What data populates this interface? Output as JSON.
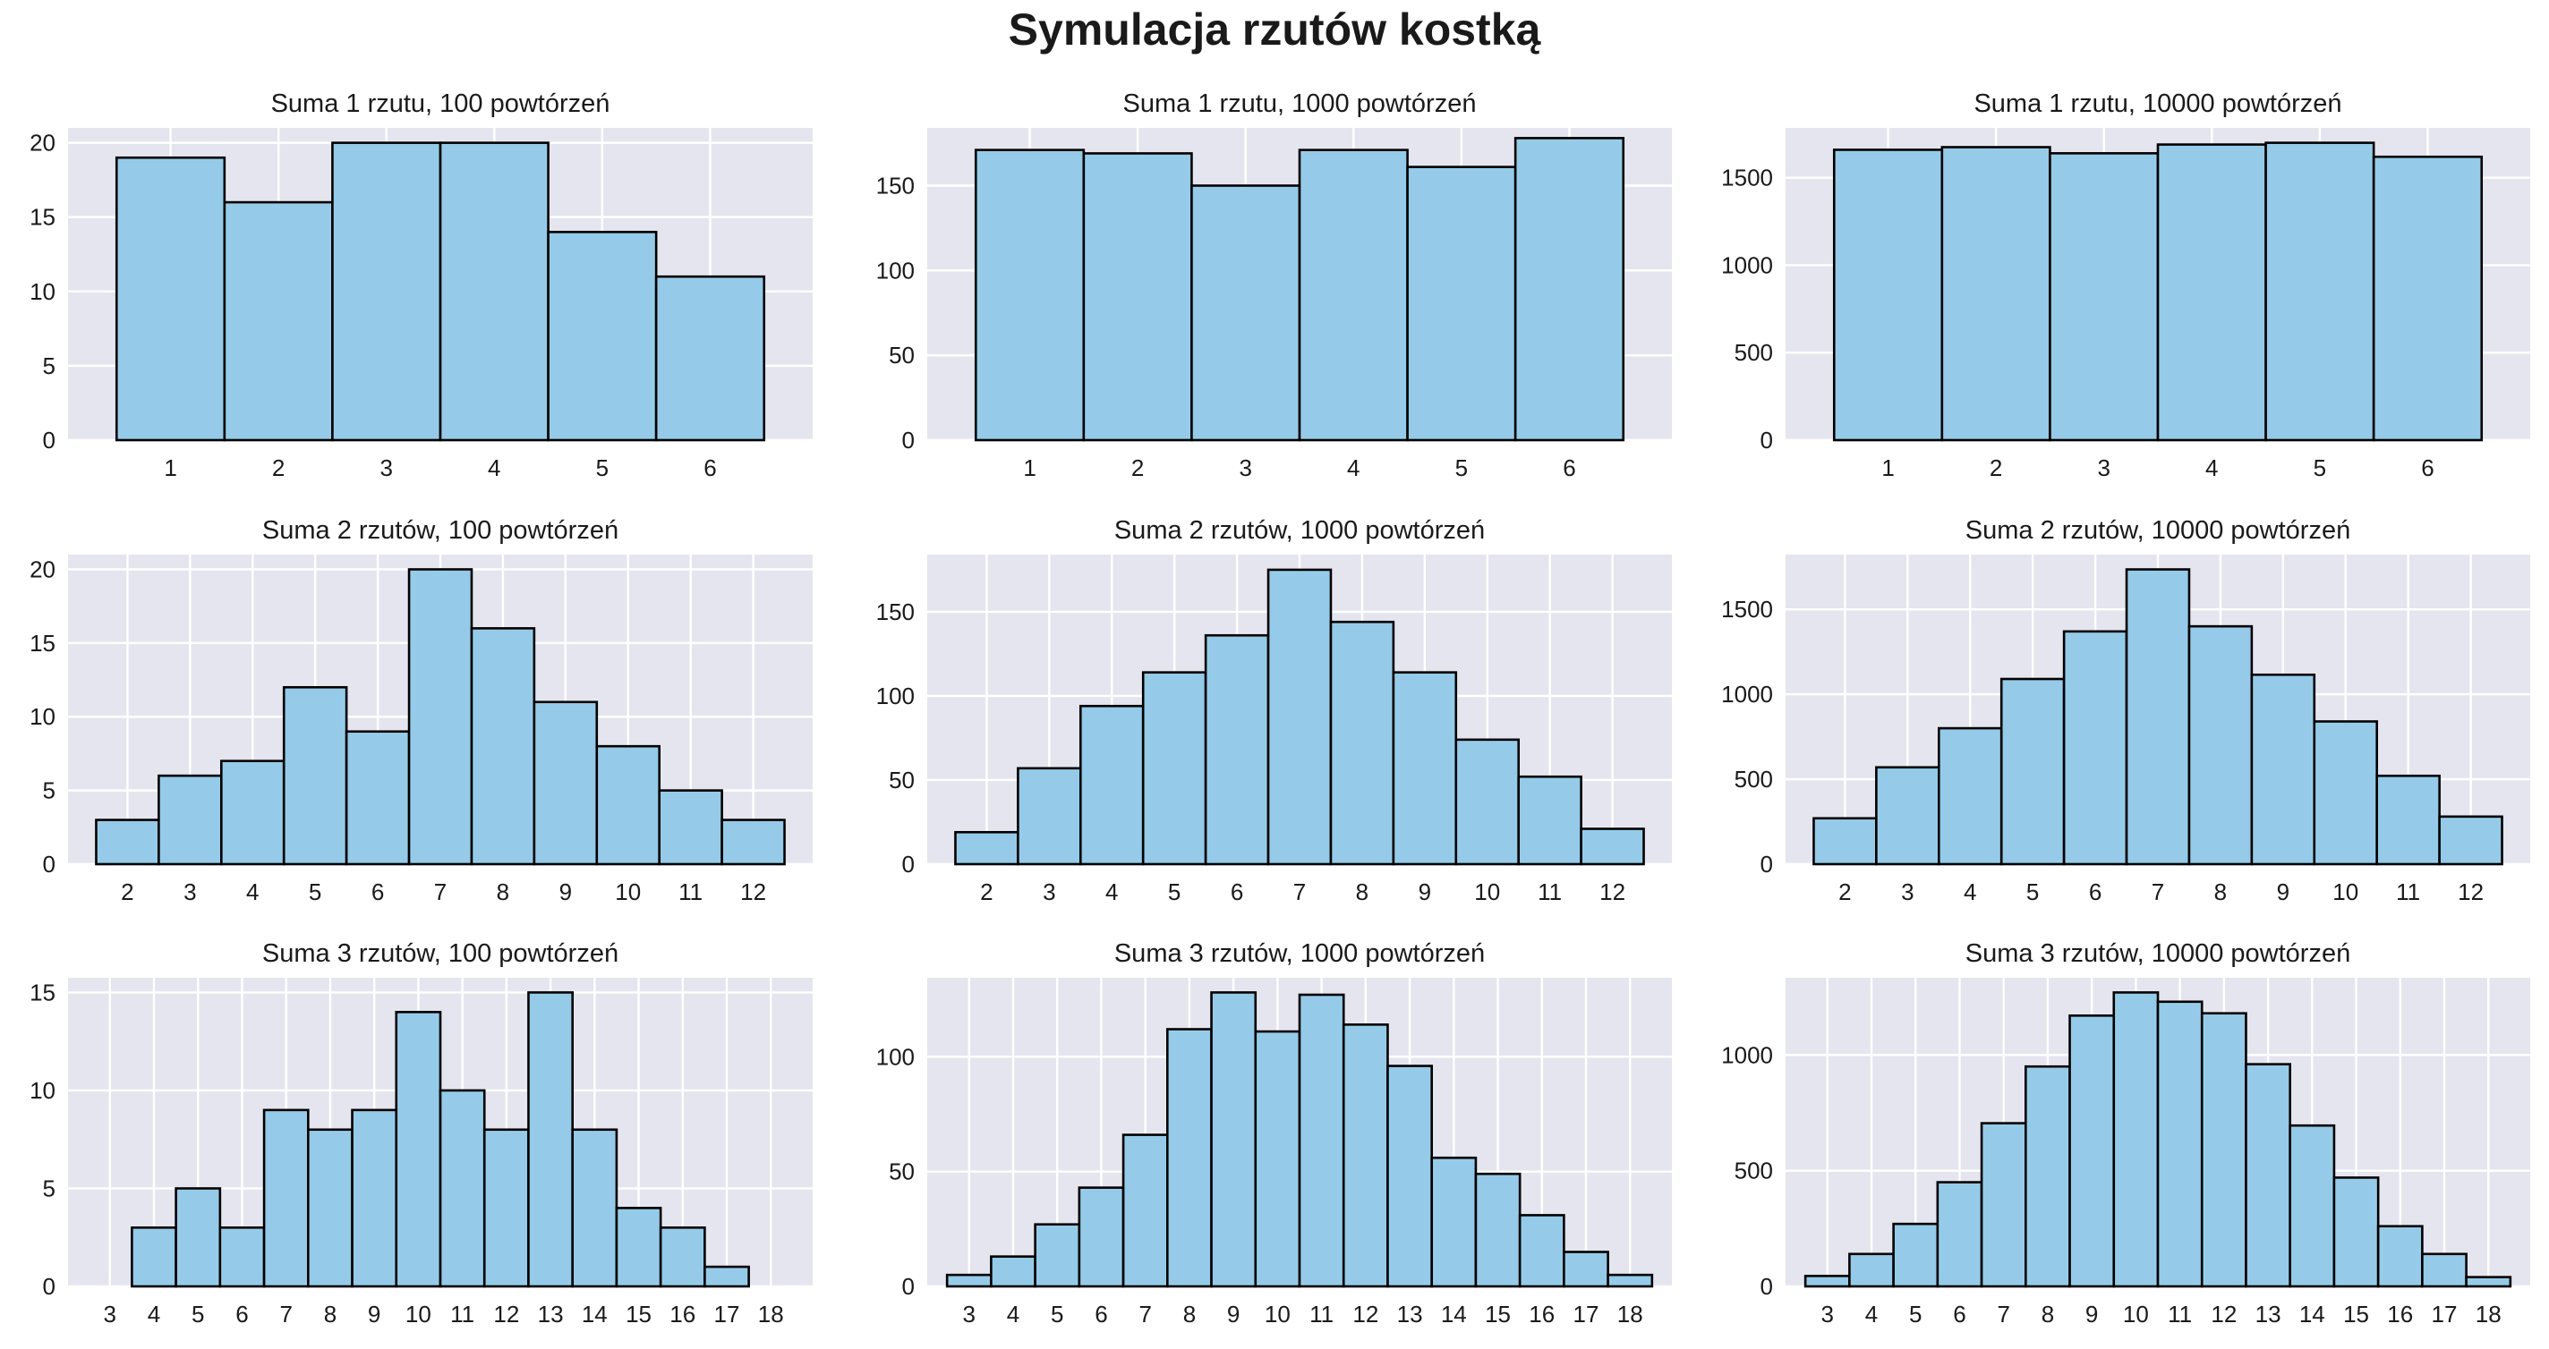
{
  "title": "Symulacja rzutów kostką",
  "chart_data": [
    {
      "type": "bar",
      "title": "Suma 1 rzutu, 100 powtórzeń",
      "categories": [
        "1",
        "2",
        "3",
        "4",
        "5",
        "6"
      ],
      "values": [
        19,
        16,
        20,
        20,
        14,
        11
      ],
      "yticks": [
        0,
        5,
        10,
        15,
        20
      ],
      "ylim": [
        0,
        21
      ],
      "grid": true
    },
    {
      "type": "bar",
      "title": "Suma 1 rzutu, 1000 powtórzeń",
      "categories": [
        "1",
        "2",
        "3",
        "4",
        "5",
        "6"
      ],
      "values": [
        171,
        169,
        150,
        171,
        161,
        178
      ],
      "yticks": [
        0,
        50,
        100,
        150
      ],
      "ylim": [
        0,
        184
      ],
      "grid": true
    },
    {
      "type": "bar",
      "title": "Suma 1 rzutu, 10000 powtórzeń",
      "categories": [
        "1",
        "2",
        "3",
        "4",
        "5",
        "6"
      ],
      "values": [
        1660,
        1675,
        1640,
        1690,
        1700,
        1620
      ],
      "yticks": [
        0,
        500,
        1000,
        1500
      ],
      "ylim": [
        0,
        1785
      ],
      "grid": true
    },
    {
      "type": "bar",
      "title": "Suma 2 rzutów, 100 powtórzeń",
      "categories": [
        "2",
        "3",
        "4",
        "5",
        "6",
        "7",
        "8",
        "9",
        "10",
        "11",
        "12"
      ],
      "values": [
        3,
        6,
        7,
        12,
        9,
        20,
        16,
        11,
        8,
        5,
        3
      ],
      "yticks": [
        0,
        5,
        10,
        15,
        20
      ],
      "ylim": [
        0,
        21
      ],
      "grid": true
    },
    {
      "type": "bar",
      "title": "Suma 2 rzutów, 1000 powtórzeń",
      "categories": [
        "2",
        "3",
        "4",
        "5",
        "6",
        "7",
        "8",
        "9",
        "10",
        "11",
        "12"
      ],
      "values": [
        19,
        57,
        94,
        114,
        136,
        175,
        144,
        114,
        74,
        52,
        21
      ],
      "yticks": [
        0,
        50,
        100,
        150
      ],
      "ylim": [
        0,
        184
      ],
      "grid": true
    },
    {
      "type": "bar",
      "title": "Suma 2 rzutów, 10000 powtórzeń",
      "categories": [
        "2",
        "3",
        "4",
        "5",
        "6",
        "7",
        "8",
        "9",
        "10",
        "11",
        "12"
      ],
      "values": [
        270,
        570,
        800,
        1090,
        1370,
        1735,
        1400,
        1115,
        840,
        520,
        280
      ],
      "yticks": [
        0,
        500,
        1000,
        1500
      ],
      "ylim": [
        0,
        1822
      ],
      "grid": true
    },
    {
      "type": "bar",
      "title": "Suma 3 rzutów, 100 powtórzeń",
      "categories": [
        "3",
        "4",
        "5",
        "6",
        "7",
        "8",
        "9",
        "10",
        "11",
        "12",
        "13",
        "14",
        "15",
        "16",
        "17",
        "18"
      ],
      "values": [
        0,
        3,
        5,
        3,
        9,
        8,
        9,
        14,
        10,
        8,
        15,
        8,
        4,
        3,
        1,
        0
      ],
      "yticks": [
        0,
        5,
        10,
        15
      ],
      "ylim": [
        0,
        15.75
      ],
      "grid": true
    },
    {
      "type": "bar",
      "title": "Suma 3 rzutów, 1000 powtórzeń",
      "categories": [
        "3",
        "4",
        "5",
        "6",
        "7",
        "8",
        "9",
        "10",
        "11",
        "12",
        "13",
        "14",
        "15",
        "16",
        "17",
        "18"
      ],
      "values": [
        5,
        13,
        27,
        43,
        66,
        112,
        128,
        111,
        127,
        114,
        96,
        56,
        49,
        31,
        15,
        5
      ],
      "yticks": [
        0,
        50,
        100
      ],
      "ylim": [
        0,
        134.4
      ],
      "grid": true
    },
    {
      "type": "bar",
      "title": "Suma 3 rzutów, 10000 powtórzeń",
      "categories": [
        "3",
        "4",
        "5",
        "6",
        "7",
        "8",
        "9",
        "10",
        "11",
        "12",
        "13",
        "14",
        "15",
        "16",
        "17",
        "18"
      ],
      "values": [
        45,
        140,
        270,
        450,
        705,
        950,
        1170,
        1270,
        1230,
        1180,
        960,
        695,
        470,
        260,
        140,
        40
      ],
      "yticks": [
        0,
        500,
        1000
      ],
      "ylim": [
        0,
        1333.5
      ],
      "grid": true
    }
  ],
  "colors": {
    "plot_bg": "#E5E5EF",
    "grid": "#ffffff",
    "bar_fill": "#95CBE8",
    "bar_edge": "#000000"
  }
}
